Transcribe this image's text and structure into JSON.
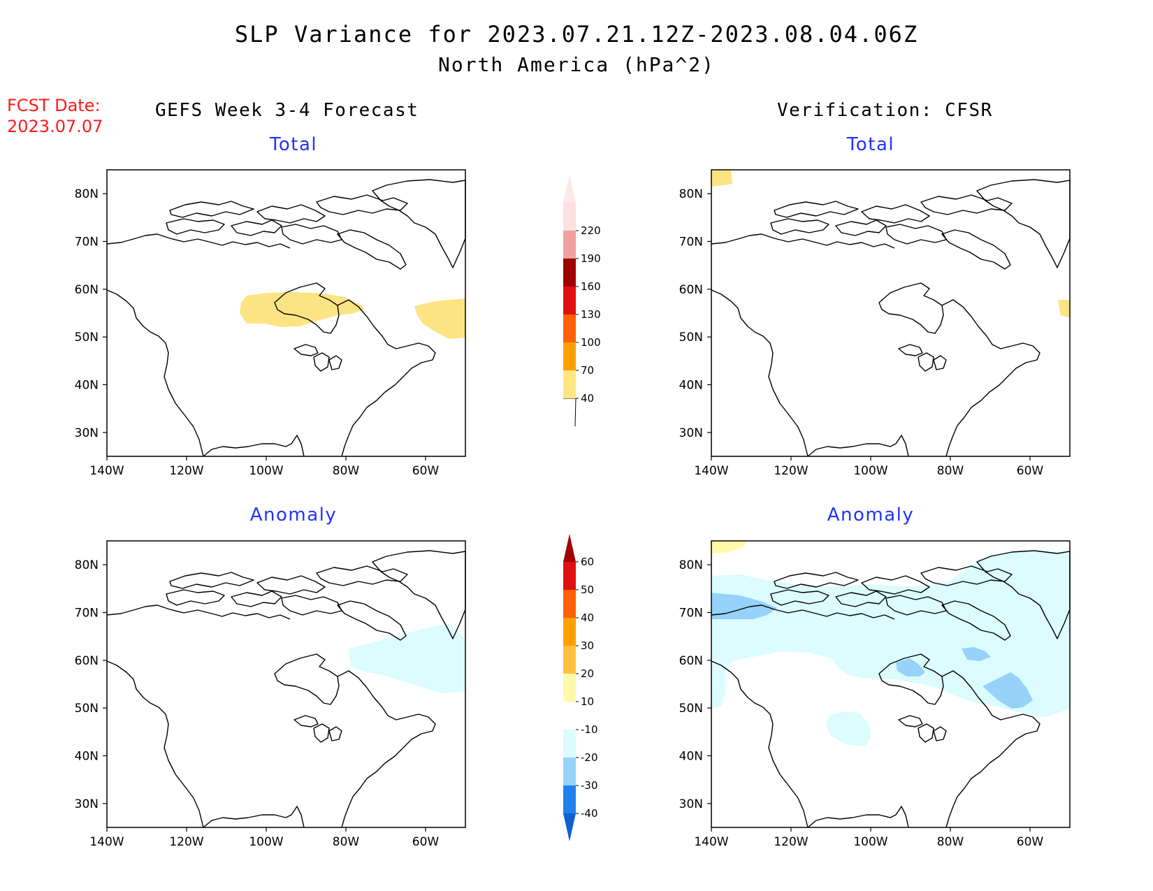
{
  "title": {
    "line1": "SLP Variance for 2023.07.21.12Z-2023.08.04.06Z",
    "line2": "North America (hPa^2)"
  },
  "fcst_date": {
    "label": "FCST Date:",
    "value": "2023.07.07"
  },
  "columns": {
    "left": "GEFS Week 3-4 Forecast",
    "right": "Verification: CFSR"
  },
  "subtitles": {
    "top_left": "Total",
    "top_right": "Total",
    "bottom_left": "Anomaly",
    "bottom_right": "Anomaly"
  },
  "axes": {
    "lat_labels": [
      "80N",
      "70N",
      "60N",
      "50N",
      "40N",
      "30N"
    ],
    "lat_values": [
      80,
      70,
      60,
      50,
      40,
      30
    ],
    "lon_labels": [
      "140W",
      "120W",
      "100W",
      "80W",
      "60W"
    ],
    "lon_values": [
      -140,
      -120,
      -100,
      -80,
      -60
    ],
    "lon_range": [
      -140,
      -50
    ],
    "lat_range": [
      25,
      85
    ]
  },
  "colorbars": {
    "total": {
      "labels": [
        "40",
        "70",
        "100",
        "130",
        "160",
        "190",
        "220"
      ],
      "colors": [
        "#ffe680",
        "#ffa000",
        "#ff6000",
        "#e01010",
        "#a00000",
        "#f0a0a0",
        "#fde0e0"
      ]
    },
    "anomaly": {
      "labels": [
        "-40",
        "-30",
        "-20",
        "-10",
        "10",
        "20",
        "30",
        "40",
        "50",
        "60"
      ],
      "colors": [
        "#1060d0",
        "#2080ee",
        "#96d2fa",
        "#dcfcff",
        "#ffffff",
        "#fffaaa",
        "#ffc040",
        "#ffa000",
        "#ff6000",
        "#e01010",
        "#a00000"
      ]
    }
  },
  "colors": {
    "shade_40": "#fce484",
    "anom_neg10": "#dcfcff",
    "anom_neg20": "#96d2fa",
    "anom_pos10": "#fffaaa"
  }
}
